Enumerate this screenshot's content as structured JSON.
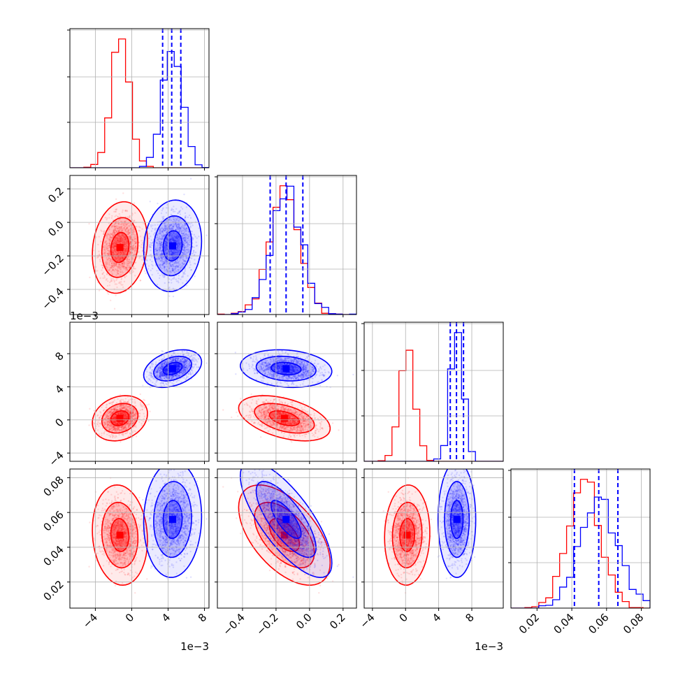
{
  "colors": {
    "red": "#ff0000",
    "blue": "#0000ff",
    "grid": "#b0b0b0",
    "frame": "#000000"
  },
  "chart_data": {
    "type": "corner",
    "parameters": [
      {
        "range": [
          -6.8,
          8.5
        ],
        "ticks": [
          -4,
          0,
          4,
          8
        ],
        "tick_labels": [
          "−4",
          "0",
          "4",
          "8"
        ],
        "offset_label": "1e−3"
      },
      {
        "range": [
          -0.55,
          0.28
        ],
        "ticks": [
          -0.4,
          -0.2,
          0.0,
          0.2
        ],
        "tick_labels": [
          "−0.4",
          "−0.2",
          "0.0",
          "0.2"
        ],
        "offset_label": ""
      },
      {
        "range": [
          -5.0,
          11.8
        ],
        "ticks": [
          -4,
          0,
          4,
          8
        ],
        "tick_labels": [
          "−4",
          "0",
          "4",
          "8"
        ],
        "offset_label": "1e−3"
      },
      {
        "range": [
          0.005,
          0.085
        ],
        "ticks": [
          0.02,
          0.04,
          0.06,
          0.08
        ],
        "tick_labels": [
          "0.02",
          "0.04",
          "0.06",
          "0.08"
        ],
        "offset_label": ""
      }
    ],
    "series": [
      {
        "color": "red",
        "mean": [
          -1.3,
          -0.15,
          0.2,
          0.047
        ],
        "sd": [
          1.0,
          0.09,
          0.9,
          0.0095
        ],
        "correlations": [
          [
            0,
            1,
            0.15
          ],
          [
            0,
            2,
            0.2
          ],
          [
            0,
            3,
            -0.1
          ],
          [
            1,
            2,
            -0.45
          ],
          [
            1,
            3,
            -0.55
          ],
          [
            2,
            3,
            0.05
          ]
        ]
      },
      {
        "color": "blue",
        "mean": [
          4.5,
          -0.14,
          6.2,
          0.056
        ],
        "sd": [
          1.05,
          0.09,
          0.75,
          0.011
        ],
        "correlations": [
          [
            0,
            1,
            0.1
          ],
          [
            0,
            2,
            0.35
          ],
          [
            0,
            3,
            0.05
          ],
          [
            1,
            2,
            -0.15
          ],
          [
            1,
            3,
            -0.75
          ],
          [
            2,
            3,
            0.0
          ]
        ]
      }
    ],
    "quantile_lines": {
      "color": "blue",
      "values": [
        [
          3.4,
          4.4,
          5.4
        ],
        [
          -0.235,
          -0.14,
          -0.04
        ],
        [
          5.4,
          6.15,
          7.0
        ],
        [
          0.0415,
          0.0555,
          0.0665
        ]
      ]
    },
    "histogram_bins": 20,
    "contour_levels": [
      0.39,
      0.86,
      0.99
    ],
    "grid": true
  }
}
